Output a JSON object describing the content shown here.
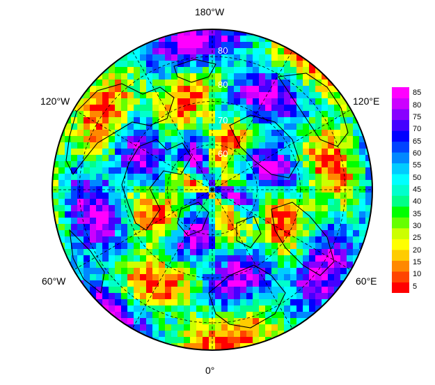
{
  "map": {
    "projection": "north-polar-stereographic",
    "longitude_labels": {
      "top": "180°W",
      "bottom": "0°",
      "upper_left": "120°W",
      "upper_right": "120°E",
      "lower_left": "60°W",
      "lower_right": "60°E"
    },
    "latitude_labels": [
      "80",
      "80",
      "70",
      "60"
    ],
    "colors": {
      "coastline": "#000000",
      "graticule": "#000000",
      "border": "#000000"
    }
  },
  "colorbar": {
    "ticks": [
      "85",
      "80",
      "75",
      "70",
      "65",
      "60",
      "55",
      "50",
      "45",
      "40",
      "35",
      "30",
      "25",
      "20",
      "15",
      "10",
      "5"
    ],
    "min": 2.5,
    "max": 87.5,
    "colors": [
      "#ff0000",
      "#ff4400",
      "#ff8800",
      "#ffcc00",
      "#ffff00",
      "#ccff00",
      "#66ff00",
      "#00ff00",
      "#00ff88",
      "#00ffcc",
      "#00ffff",
      "#00ccff",
      "#0088ff",
      "#0044ff",
      "#0000ff",
      "#4400ff",
      "#8800ff",
      "#cc00ff",
      "#ff00ff"
    ]
  }
}
